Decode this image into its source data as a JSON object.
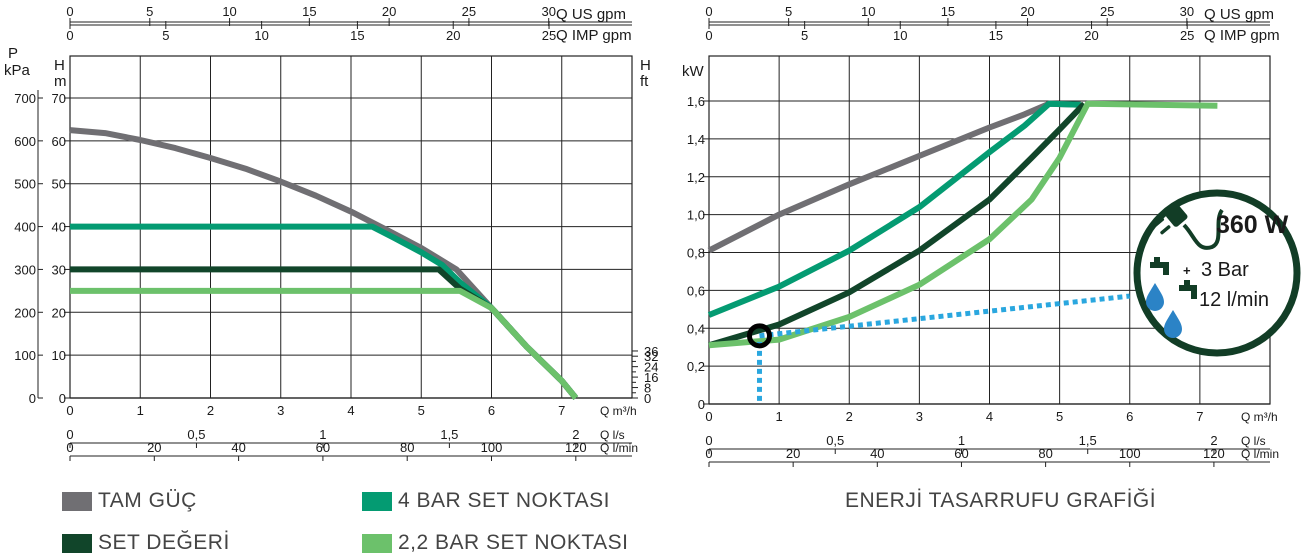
{
  "colors": {
    "tam_guc": "#706f73",
    "set_degeri": "#11452a",
    "bar4": "#049b72",
    "bar22": "#6cc16b",
    "energy_dotted": "#2aa7df",
    "badge_dark": "#123d26"
  },
  "legend": {
    "tam_guc": "TAM GÜÇ",
    "set_degeri": "SET DEĞERİ",
    "bar4": "4 BAR SET NOKTASI",
    "bar22": "2,2 BAR SET NOKTASI"
  },
  "right_title": "ENERJİ TASARRUFU GRAFİĞİ",
  "badge": {
    "power": "360 W",
    "pressure": "3 Bar",
    "flow": "12 l/min",
    "plus": "+"
  },
  "chart_data": [
    {
      "type": "line",
      "title": "",
      "x": {
        "label": "Q m³/h",
        "range": [
          0,
          8
        ],
        "ticks": [
          "0",
          "1",
          "2",
          "3",
          "4",
          "5",
          "6",
          "7"
        ]
      },
      "y": {
        "label": "H m",
        "range": [
          0,
          70
        ],
        "ticks": [
          "0",
          "10",
          "20",
          "30",
          "40",
          "50",
          "60",
          "70"
        ]
      },
      "y_pressure": {
        "label_top": "P",
        "label_unit": "kPa",
        "range": [
          0,
          700
        ],
        "ticks": [
          "0",
          "100",
          "200",
          "300",
          "400",
          "500",
          "600",
          "700"
        ]
      },
      "y_feet": {
        "label_top": "H",
        "label_unit": "ft",
        "ticks": [
          "0",
          "8",
          "16",
          "24",
          "32",
          "36"
        ]
      },
      "x_us_gpm": {
        "label": "Q US gpm",
        "ticks": [
          "0",
          "5",
          "10",
          "15",
          "20",
          "25",
          "30"
        ]
      },
      "x_imp_gpm": {
        "label": "Q IMP gpm",
        "ticks": [
          "0",
          "5",
          "10",
          "15",
          "20",
          "25"
        ]
      },
      "x_ls": {
        "label": "Q l/s",
        "ticks": [
          "0",
          "0,5",
          "1",
          "1,5",
          "2"
        ]
      },
      "x_lmin": {
        "label": "Q l/min",
        "ticks": [
          "0",
          "20",
          "40",
          "60",
          "80",
          "100",
          "120"
        ]
      },
      "grid": true,
      "series": [
        {
          "name": "TAM GÜÇ",
          "color_key": "tam_guc",
          "points": [
            [
              0,
              62.5
            ],
            [
              0.5,
              61.8
            ],
            [
              1,
              60.2
            ],
            [
              1.5,
              58.3
            ],
            [
              2,
              56
            ],
            [
              2.5,
              53.5
            ],
            [
              3,
              50.5
            ],
            [
              3.5,
              47.2
            ],
            [
              4,
              43.5
            ],
            [
              4.5,
              39.3
            ],
            [
              5,
              35
            ],
            [
              5.5,
              30
            ],
            [
              6,
              21
            ],
            [
              6.5,
              12
            ],
            [
              7,
              4
            ],
            [
              7.2,
              0
            ]
          ]
        },
        {
          "name": "4 BAR SET NOKTASI",
          "color_key": "bar4",
          "points": [
            [
              0,
              40
            ],
            [
              4.3,
              40
            ],
            [
              4.6,
              37.5
            ],
            [
              5,
              34
            ],
            [
              5.3,
              31
            ],
            [
              5.55,
              27
            ],
            [
              6,
              21
            ],
            [
              6.5,
              12
            ],
            [
              7,
              4
            ],
            [
              7.2,
              0
            ]
          ]
        },
        {
          "name": "SET DEĞERİ",
          "color_key": "set_degeri",
          "points": [
            [
              0,
              30
            ],
            [
              5.25,
              30
            ],
            [
              5.55,
              25.5
            ],
            [
              6,
              21
            ],
            [
              6.5,
              12
            ],
            [
              7,
              4
            ],
            [
              7.2,
              0
            ]
          ]
        },
        {
          "name": "2,2 BAR SET NOKTASI",
          "color_key": "bar22",
          "points": [
            [
              0,
              25
            ],
            [
              5.55,
              25
            ],
            [
              6,
              21
            ],
            [
              6.5,
              12
            ],
            [
              7,
              4
            ],
            [
              7.2,
              0
            ]
          ]
        }
      ]
    },
    {
      "type": "line",
      "title": "ENERJİ TASARRUFU GRAFİĞİ",
      "x": {
        "label": "Q m³/h",
        "range": [
          0,
          8
        ],
        "ticks": [
          "0",
          "1",
          "2",
          "3",
          "4",
          "5",
          "6",
          "7"
        ]
      },
      "y": {
        "label": "kW",
        "range": [
          0,
          1.8
        ],
        "ticks": [
          "0",
          "0,2",
          "0,4",
          "0,6",
          "0,8",
          "1,0",
          "1,2",
          "1,4",
          "1,6"
        ]
      },
      "x_us_gpm": {
        "label": "Q US gpm",
        "ticks": [
          "0",
          "5",
          "10",
          "15",
          "20",
          "25",
          "30"
        ]
      },
      "x_imp_gpm": {
        "label": "Q IMP gpm",
        "ticks": [
          "0",
          "5",
          "10",
          "15",
          "20",
          "25"
        ]
      },
      "x_ls": {
        "label": "Q l/s",
        "ticks": [
          "0",
          "0,5",
          "1",
          "1,5",
          "2"
        ]
      },
      "x_lmin": {
        "label": "Q l/min",
        "ticks": [
          "0",
          "20",
          "40",
          "60",
          "80",
          "100",
          "120"
        ]
      },
      "grid": true,
      "series": [
        {
          "name": "TAM GÜÇ",
          "color_key": "tam_guc",
          "points": [
            [
              0,
              0.81
            ],
            [
              1,
              1.0
            ],
            [
              2,
              1.16
            ],
            [
              3,
              1.31
            ],
            [
              4,
              1.46
            ],
            [
              4.5,
              1.53
            ],
            [
              4.85,
              1.585
            ],
            [
              5.3,
              1.58
            ]
          ]
        },
        {
          "name": "4 BAR SET NOKTASI",
          "color_key": "bar4",
          "points": [
            [
              0,
              0.47
            ],
            [
              1,
              0.62
            ],
            [
              2,
              0.81
            ],
            [
              3,
              1.04
            ],
            [
              4,
              1.33
            ],
            [
              4.5,
              1.47
            ],
            [
              4.85,
              1.585
            ],
            [
              5.3,
              1.58
            ]
          ]
        },
        {
          "name": "SET DEĞERİ",
          "color_key": "set_degeri",
          "points": [
            [
              0,
              0.31
            ],
            [
              1,
              0.42
            ],
            [
              2,
              0.59
            ],
            [
              3,
              0.81
            ],
            [
              4,
              1.08
            ],
            [
              4.6,
              1.3
            ],
            [
              5,
              1.45
            ],
            [
              5.35,
              1.585
            ]
          ]
        },
        {
          "name": "2,2 BAR SET NOKTASI",
          "color_key": "bar22",
          "points": [
            [
              0,
              0.31
            ],
            [
              1,
              0.34
            ],
            [
              2,
              0.46
            ],
            [
              3,
              0.63
            ],
            [
              4,
              0.87
            ],
            [
              4.6,
              1.08
            ],
            [
              5,
              1.3
            ],
            [
              5.4,
              1.585
            ],
            [
              7.25,
              1.575
            ]
          ]
        }
      ],
      "energy_point": {
        "x": 0.72,
        "y": 0.36
      },
      "dotted_line_end": {
        "x": 6.0,
        "y": 0.57
      }
    }
  ]
}
